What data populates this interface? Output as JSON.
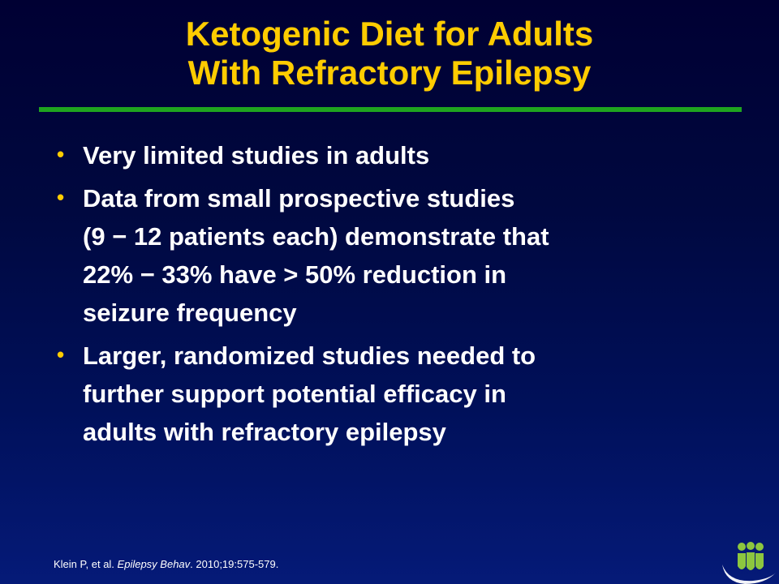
{
  "title": {
    "line1": "Ketogenic Diet for Adults",
    "line2": "With Refractory Epilepsy"
  },
  "bullets": [
    {
      "lines": [
        "Very limited studies in adults"
      ]
    },
    {
      "lines": [
        "Data from small prospective studies",
        "(9 − 12 patients each) demonstrate that",
        "22% − 33% have > 50% reduction in",
        "seizure frequency"
      ]
    },
    {
      "lines": [
        "Larger, randomized studies needed to",
        "further support potential efficacy in",
        "adults with refractory epilepsy"
      ]
    }
  ],
  "citation": {
    "authors": "Klein P, et al.",
    "journal": "Epilepsy Behav",
    "details": ". 2010;19:575-579."
  },
  "colors": {
    "title": "#ffcc00",
    "rule": "#1fa51f",
    "bullet_dot": "#ffcc00",
    "text": "#ffffff"
  },
  "logo_icon": "people-figures-icon"
}
